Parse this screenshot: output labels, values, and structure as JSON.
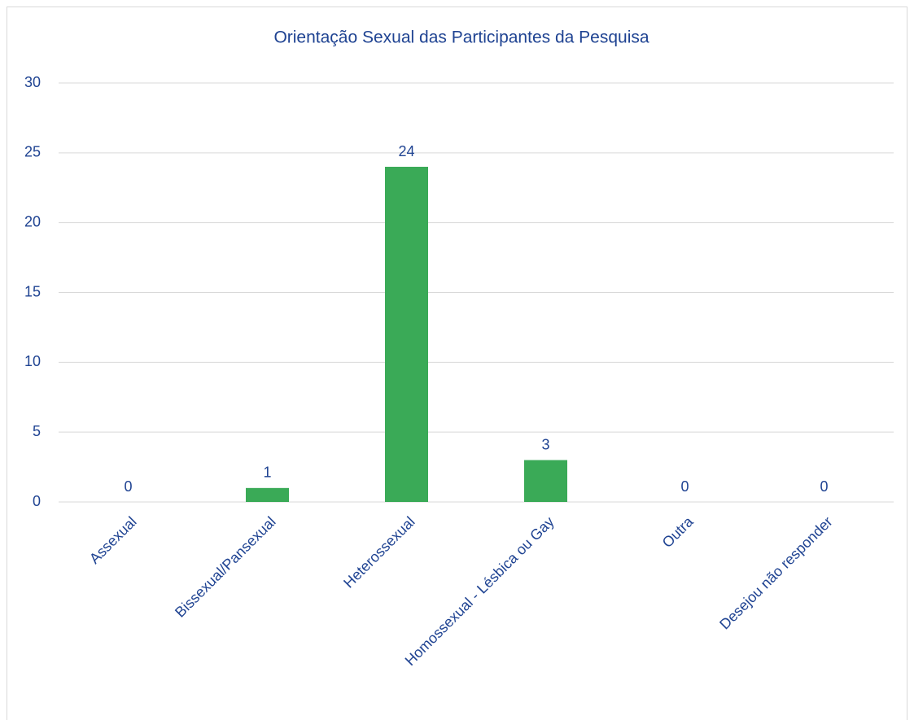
{
  "chart_data": {
    "type": "bar",
    "title": "Orientação Sexual das Participantes da Pesquisa",
    "categories": [
      "Assexual",
      "Bissexual/Pansexual",
      "Heterossexual",
      "Homossexual - Lésbica ou Gay",
      "Outra",
      "Desejou não responder"
    ],
    "values": [
      0,
      1,
      24,
      3,
      0,
      0
    ],
    "color": "#3aaa57",
    "ylim": [
      0,
      30
    ],
    "yticks": [
      0,
      5,
      10,
      15,
      20,
      25,
      30
    ],
    "grid": true
  }
}
